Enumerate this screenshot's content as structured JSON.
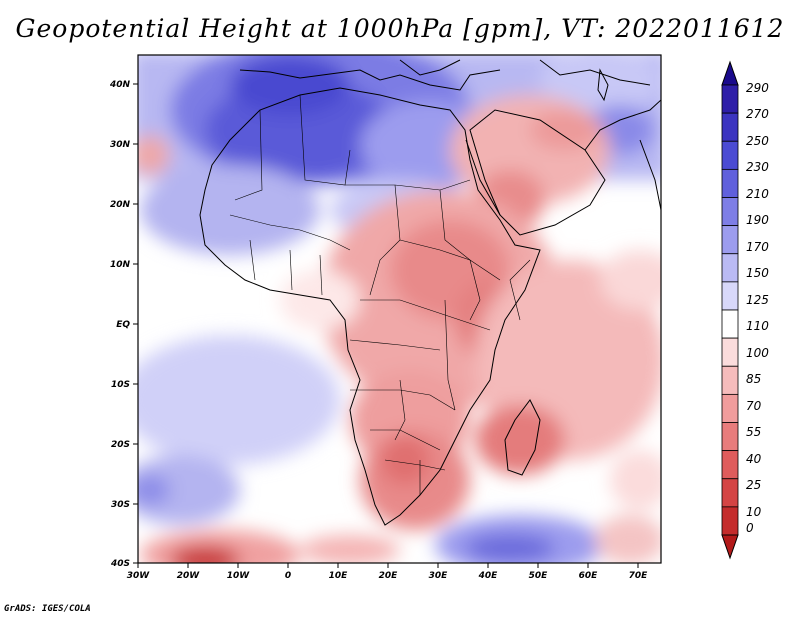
{
  "title": "Geopotential Height at 1000hPa [gpm], VT: 2022011612",
  "footer": "GrADS: IGES/COLA",
  "map": {
    "lon_labels": [
      "30W",
      "20W",
      "10W",
      "0",
      "10E",
      "20E",
      "30E",
      "40E",
      "50E",
      "60E",
      "70E"
    ],
    "lat_labels": [
      "40N",
      "30N",
      "20N",
      "10N",
      "EQ",
      "10S",
      "20S",
      "30S",
      "40S"
    ]
  },
  "colorbar": {
    "labels": [
      "290",
      "270",
      "250",
      "230",
      "210",
      "190",
      "170",
      "150",
      "125",
      "110",
      "100",
      "85",
      "70",
      "55",
      "40",
      "25",
      "10",
      "0"
    ],
    "colors": [
      "#1a0a8c",
      "#2e1ea8",
      "#3c34c0",
      "#4b4bd3",
      "#6060dc",
      "#7e7ee6",
      "#9c9cee",
      "#babaf4",
      "#d8d8fa",
      "#ffffff",
      "#fbdcdc",
      "#f6bcbc",
      "#f09c9c",
      "#e87c7c",
      "#df5c5c",
      "#d44444",
      "#c42c2c",
      "#b31a1a"
    ]
  }
}
